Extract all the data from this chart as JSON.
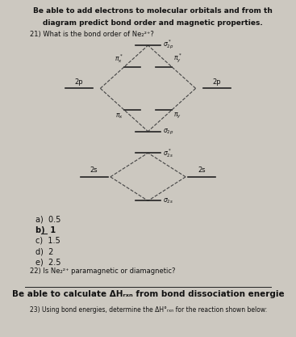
{
  "title_line1": "Be able to add electrons to molecular orbitals and from th",
  "title_line2": "diagram predict bond order and magnetic properties.",
  "question21": "21) What is the bond order of Ne₂²⁺?",
  "question22": "22) Is Ne₂²⁺ paramagnetic or diamagnetic?",
  "footer_line1": "Be able to calculate ΔHᵣₓₙ from bond dissociation energie",
  "footer_line2": "23) Using bond energies, determine the ΔH°ᵣₓₙ for the reaction shown below:",
  "answer_a": "a)  0.5",
  "answer_b": "b)  1",
  "answer_c": "c)  1.5",
  "answer_d": "d)  2",
  "answer_e": "e)  2.5",
  "bg_color": "#ccc8c0",
  "line_color": "#222222",
  "dashed_color": "#444444",
  "text_color": "#111111",
  "title_fontsize": 6.5,
  "label_fontsize": 5.5,
  "ao_fontsize": 6.0,
  "ans_fontsize": 7.0,
  "q_fontsize": 6.0,
  "footer_fontsize": 7.5,
  "footer2_fontsize": 5.5
}
